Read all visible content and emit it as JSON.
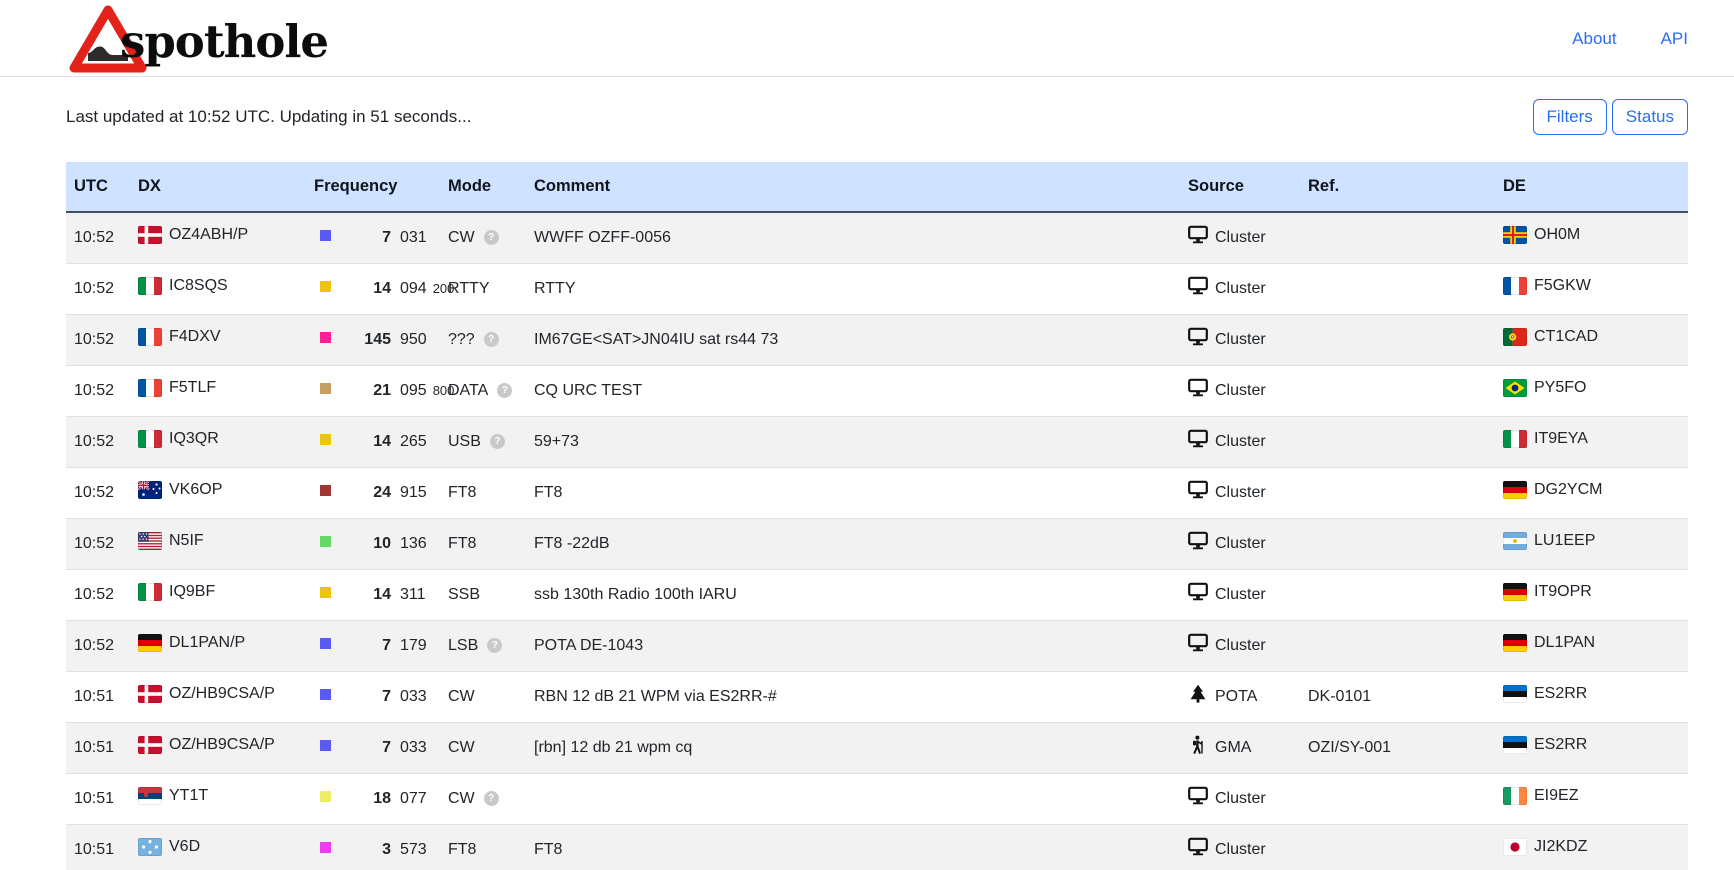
{
  "brand": {
    "name": "spothole"
  },
  "nav": {
    "links": [
      {
        "label": "About"
      },
      {
        "label": "API"
      }
    ]
  },
  "status_bar": {
    "text": "Last updated at 10:52 UTC. Updating in 51 seconds..."
  },
  "actions": {
    "filters_label": "Filters",
    "status_label": "Status"
  },
  "colors": {
    "accent_blue": "#2a6ff2",
    "table_header_bg": "#cfe2ff",
    "stripe_bg": "#f2f2f2",
    "help_badge_bg": "#c9c9c9"
  },
  "table": {
    "columns": [
      "UTC",
      "DX",
      "Frequency",
      "Mode",
      "Comment",
      "Source",
      "Ref.",
      "DE"
    ],
    "rows": [
      {
        "utc": "10:52",
        "dx_flag": "dk",
        "dx": "OZ4ABH/P",
        "band_color": "#5a5af7",
        "mhz": "7",
        "khz": "031",
        "sub": "",
        "mode": "CW",
        "mode_help": true,
        "comment": "WWFF OZFF-0056",
        "source": "Cluster",
        "source_icon": "cluster",
        "ref": "",
        "de_flag": "ax",
        "de": "OH0M"
      },
      {
        "utc": "10:52",
        "dx_flag": "it",
        "dx": "IC8SQS",
        "band_color": "#eec40e",
        "mhz": "14",
        "khz": "094",
        "sub": "200",
        "mode": "RTTY",
        "mode_help": false,
        "comment": "RTTY",
        "source": "Cluster",
        "source_icon": "cluster",
        "ref": "",
        "de_flag": "fr",
        "de": "F5GKW"
      },
      {
        "utc": "10:52",
        "dx_flag": "fr",
        "dx": "F4DXV",
        "band_color": "#ff2097",
        "mhz": "145",
        "khz": "950",
        "sub": "",
        "mode": "???",
        "mode_help": true,
        "comment": "IM67GE<SAT>JN04IU sat rs44 73",
        "source": "Cluster",
        "source_icon": "cluster",
        "ref": "",
        "de_flag": "pt",
        "de": "CT1CAD"
      },
      {
        "utc": "10:52",
        "dx_flag": "fr",
        "dx": "F5TLF",
        "band_color": "#c79e62",
        "mhz": "21",
        "khz": "095",
        "sub": "800",
        "mode": "DATA",
        "mode_help": true,
        "comment": "CQ URC TEST",
        "source": "Cluster",
        "source_icon": "cluster",
        "ref": "",
        "de_flag": "br",
        "de": "PY5FO"
      },
      {
        "utc": "10:52",
        "dx_flag": "it",
        "dx": "IQ3QR",
        "band_color": "#eec40e",
        "mhz": "14",
        "khz": "265",
        "sub": "",
        "mode": "USB",
        "mode_help": true,
        "comment": "59+73",
        "source": "Cluster",
        "source_icon": "cluster",
        "ref": "",
        "de_flag": "it",
        "de": "IT9EYA"
      },
      {
        "utc": "10:52",
        "dx_flag": "au",
        "dx": "VK6OP",
        "band_color": "#a33434",
        "mhz": "24",
        "khz": "915",
        "sub": "",
        "mode": "FT8",
        "mode_help": false,
        "comment": "FT8",
        "source": "Cluster",
        "source_icon": "cluster",
        "ref": "",
        "de_flag": "de",
        "de": "DG2YCM"
      },
      {
        "utc": "10:52",
        "dx_flag": "us",
        "dx": "N5IF",
        "band_color": "#66d966",
        "mhz": "10",
        "khz": "136",
        "sub": "",
        "mode": "FT8",
        "mode_help": false,
        "comment": "FT8 -22dB",
        "source": "Cluster",
        "source_icon": "cluster",
        "ref": "",
        "de_flag": "ar",
        "de": "LU1EEP"
      },
      {
        "utc": "10:52",
        "dx_flag": "it",
        "dx": "IQ9BF",
        "band_color": "#eec40e",
        "mhz": "14",
        "khz": "311",
        "sub": "",
        "mode": "SSB",
        "mode_help": false,
        "comment": "ssb 130th Radio 100th IARU",
        "source": "Cluster",
        "source_icon": "cluster",
        "ref": "",
        "de_flag": "de",
        "de": "IT9OPR"
      },
      {
        "utc": "10:52",
        "dx_flag": "de",
        "dx": "DL1PAN/P",
        "band_color": "#5a5af7",
        "mhz": "7",
        "khz": "179",
        "sub": "",
        "mode": "LSB",
        "mode_help": true,
        "comment": "POTA DE-1043",
        "source": "Cluster",
        "source_icon": "cluster",
        "ref": "",
        "de_flag": "de",
        "de": "DL1PAN"
      },
      {
        "utc": "10:51",
        "dx_flag": "dk",
        "dx": "OZ/HB9CSA/P",
        "band_color": "#5a5af7",
        "mhz": "7",
        "khz": "033",
        "sub": "",
        "mode": "CW",
        "mode_help": false,
        "comment": "RBN 12 dB 21 WPM via ES2RR-#",
        "source": "POTA",
        "source_icon": "pota",
        "ref": "DK-0101",
        "de_flag": "ee",
        "de": "ES2RR"
      },
      {
        "utc": "10:51",
        "dx_flag": "dk",
        "dx": "OZ/HB9CSA/P",
        "band_color": "#5a5af7",
        "mhz": "7",
        "khz": "033",
        "sub": "",
        "mode": "CW",
        "mode_help": false,
        "comment": "[rbn] 12 db 21 wpm cq",
        "source": "GMA",
        "source_icon": "gma",
        "ref": "OZI/SY-001",
        "de_flag": "ee",
        "de": "ES2RR"
      },
      {
        "utc": "10:51",
        "dx_flag": "rs",
        "dx": "YT1T",
        "band_color": "#eded66",
        "mhz": "18",
        "khz": "077",
        "sub": "",
        "mode": "CW",
        "mode_help": true,
        "comment": "",
        "source": "Cluster",
        "source_icon": "cluster",
        "ref": "",
        "de_flag": "ie",
        "de": "EI9EZ"
      },
      {
        "utc": "10:51",
        "dx_flag": "fm",
        "dx": "V6D",
        "band_color": "#ee3cee",
        "mhz": "3",
        "khz": "573",
        "sub": "",
        "mode": "FT8",
        "mode_help": false,
        "comment": "FT8",
        "source": "Cluster",
        "source_icon": "cluster",
        "ref": "",
        "de_flag": "jp",
        "de": "JI2KDZ"
      }
    ]
  }
}
